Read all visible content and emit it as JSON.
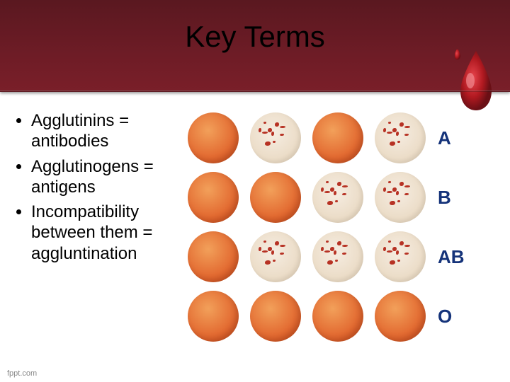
{
  "header": {
    "title": "Key Terms",
    "background_gradient": [
      "#5a1820",
      "#7a1f29"
    ],
    "drop_colors": {
      "body": "#b01920",
      "highlight": "#e8454d",
      "shadow": "#6a0f15"
    }
  },
  "bullets": [
    "Agglutinins = antibodies",
    "Agglutinogens = antigens",
    "Incompatibility between them = aggluntination"
  ],
  "chart": {
    "type": "infographic",
    "rows": 4,
    "cols": 4,
    "row_labels": [
      "A",
      "B",
      "AB",
      "O"
    ],
    "label_color": "#15337a",
    "label_fontsize": 26,
    "cells": [
      [
        "solid",
        "speckled",
        "solid",
        "speckled"
      ],
      [
        "solid",
        "solid",
        "speckled",
        "speckled"
      ],
      [
        "solid",
        "speckled",
        "speckled",
        "speckled"
      ],
      [
        "solid",
        "solid",
        "solid",
        "solid"
      ]
    ],
    "solid_color": "#e0612a",
    "pale_color": "#e9d9c2",
    "speck_color": "#b73224",
    "background": "#ffffff"
  },
  "footer": {
    "text": "fppt.com"
  }
}
